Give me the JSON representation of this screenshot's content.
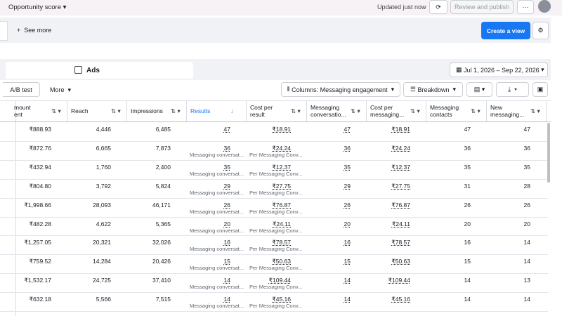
{
  "header": {
    "opportunity_score": "Opportunity score",
    "updated": "Updated just now",
    "review_button": "Review and publish"
  },
  "toolbar": {
    "see_more": "See more",
    "create_view": "Create a view"
  },
  "tabs": {
    "ads": "Ads"
  },
  "date_range": "Jul 1, 2026 – Sep 22, 2026",
  "controls": {
    "ab_test": "A/B test",
    "more": "More",
    "columns": "Columns: Messaging engagement",
    "breakdown": "Breakdown"
  },
  "table": {
    "columns": [
      [
        "mount",
        "ent"
      ],
      [
        "Reach"
      ],
      [
        "Impressions"
      ],
      [
        "Results"
      ],
      [
        "Cost per",
        "result"
      ],
      [
        "Messaging",
        "conversatio..."
      ],
      [
        "Cost per",
        "messaging..."
      ],
      [
        "Messaging",
        "contacts"
      ],
      [
        "New",
        "messaging..."
      ]
    ],
    "rows": [
      {
        "cells": [
          "₹888.93",
          "4,446",
          "6,485",
          "47",
          "₹18.91",
          "47",
          "₹18.91",
          "47",
          "47"
        ]
      },
      {
        "cells": [
          "₹872.76",
          "6,665",
          "7,873",
          "36",
          "₹24.24",
          "36",
          "₹24.24",
          "36",
          "36"
        ],
        "notes": [
          "Messaging conversat...",
          "Per Messaging Conv..."
        ]
      },
      {
        "cells": [
          "₹432.94",
          "1,760",
          "2,400",
          "35",
          "₹12.37",
          "35",
          "₹12.37",
          "35",
          "35"
        ],
        "notes": [
          "Messaging conversat...",
          "Per Messaging Conv..."
        ]
      },
      {
        "cells": [
          "₹804.80",
          "3,792",
          "5,824",
          "29",
          "₹27.75",
          "29",
          "₹27.75",
          "31",
          "28"
        ],
        "notes": [
          "Messaging conversat...",
          "Per Messaging Conv..."
        ]
      },
      {
        "cells": [
          "₹1,998.66",
          "28,093",
          "46,171",
          "26",
          "₹76.87",
          "26",
          "₹76.87",
          "26",
          "26"
        ],
        "notes": [
          "Messaging conversat...",
          "Per Messaging Conv..."
        ]
      },
      {
        "cells": [
          "₹482.28",
          "4,622",
          "5,365",
          "20",
          "₹24.11",
          "20",
          "₹24.11",
          "20",
          "20"
        ],
        "notes": [
          "Messaging conversat...",
          "Per Messaging Conv..."
        ]
      },
      {
        "cells": [
          "₹1,257.05",
          "20,321",
          "32,026",
          "16",
          "₹78.57",
          "16",
          "₹78.57",
          "16",
          "14"
        ],
        "notes": [
          "Messaging conversat...",
          "Per Messaging Conv..."
        ]
      },
      {
        "cells": [
          "₹759.52",
          "14,284",
          "20,426",
          "15",
          "₹50.63",
          "15",
          "₹50.63",
          "15",
          "14"
        ],
        "notes": [
          "Messaging conversat...",
          "Per Messaging Conv..."
        ]
      },
      {
        "cells": [
          "₹1,532.17",
          "24,725",
          "37,410",
          "14",
          "₹109.44",
          "14",
          "₹109.44",
          "14",
          "13"
        ],
        "notes": [
          "Messaging conversat...",
          "Per Messaging Conv..."
        ]
      },
      {
        "cells": [
          "₹632.18",
          "5,566",
          "7,515",
          "14",
          "₹45.16",
          "14",
          "₹45.16",
          "14",
          "14"
        ],
        "notes": [
          "Messaging conversat...",
          "Per Messaging Conv..."
        ]
      }
    ]
  }
}
